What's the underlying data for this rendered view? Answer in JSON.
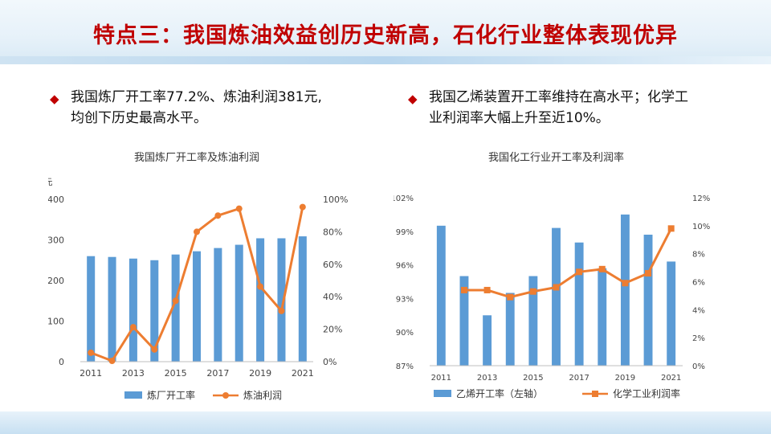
{
  "slide": {
    "title": "特点三：我国炼油效益创历史新高，石化行业整体表现优异",
    "bullets": [
      {
        "line1": "我国炼厂开工率77.2%、炼油利润381元,",
        "line2": "均创下历史最高水平。"
      },
      {
        "line1": "我国乙烯装置开工率维持在高水平；化学工",
        "line2": "业利润率大幅上升至近10%。"
      }
    ]
  },
  "colors": {
    "title": "#c00000",
    "bar": "#5b9bd5",
    "line": "#ed7d31",
    "bullet": "#c00000"
  },
  "chart_data": [
    {
      "type": "bar",
      "title": "我国炼厂开工率及炼油利润",
      "categories": [
        "2011",
        "2012",
        "2013",
        "2014",
        "2015",
        "2016",
        "2017",
        "2018",
        "2019",
        "2020",
        "2021"
      ],
      "xtick_labels": [
        "2011",
        "2013",
        "2015",
        "2017",
        "2019",
        "2021"
      ],
      "left_axis_unit": "元",
      "left_ticks": [
        "0",
        "100",
        "200",
        "300",
        "400"
      ],
      "right_ticks": [
        "0%",
        "20%",
        "40%",
        "60%",
        "80%",
        "100%"
      ],
      "ylim_left": [
        0,
        400
      ],
      "ylim_right": [
        0,
        100
      ],
      "series": [
        {
          "name": "炼厂开工率",
          "type": "bar",
          "axis": "right",
          "values": [
            65,
            64.5,
            63.5,
            62.5,
            66,
            68,
            70,
            72,
            76,
            76,
            77.2
          ]
        },
        {
          "name": "炼油利润",
          "type": "line",
          "axis": "left",
          "values": [
            22,
            2,
            85,
            30,
            150,
            320,
            360,
            377,
            185,
            125,
            381
          ]
        }
      ],
      "legend": "bottom"
    },
    {
      "type": "bar",
      "title": "我国化工行业开工率及利润率",
      "categories": [
        "2011",
        "2012",
        "2013",
        "2014",
        "2015",
        "2016",
        "2017",
        "2018",
        "2019",
        "2020",
        "2021"
      ],
      "xtick_labels": [
        "2011",
        "2013",
        "2015",
        "2017",
        "2019",
        "2021"
      ],
      "left_ticks": [
        "87%",
        "90%",
        "93%",
        "96%",
        "99%",
        "102%"
      ],
      "right_ticks": [
        "0%",
        "2%",
        "4%",
        "6%",
        "8%",
        "10%",
        "12%"
      ],
      "ylim_left": [
        87,
        102
      ],
      "ylim_right": [
        0,
        12
      ],
      "series": [
        {
          "name": "乙烯开工率（左轴）",
          "type": "bar",
          "axis": "left",
          "values": [
            99.5,
            95.0,
            91.5,
            93.5,
            95.0,
            99.3,
            98.0,
            95.7,
            100.5,
            98.7,
            96.3
          ]
        },
        {
          "name": "化学工业利润率",
          "type": "line",
          "axis": "right",
          "values": [
            null,
            5.4,
            5.4,
            4.9,
            5.3,
            5.6,
            6.7,
            6.9,
            5.9,
            6.6,
            9.8
          ]
        }
      ],
      "legend": "bottom"
    }
  ]
}
